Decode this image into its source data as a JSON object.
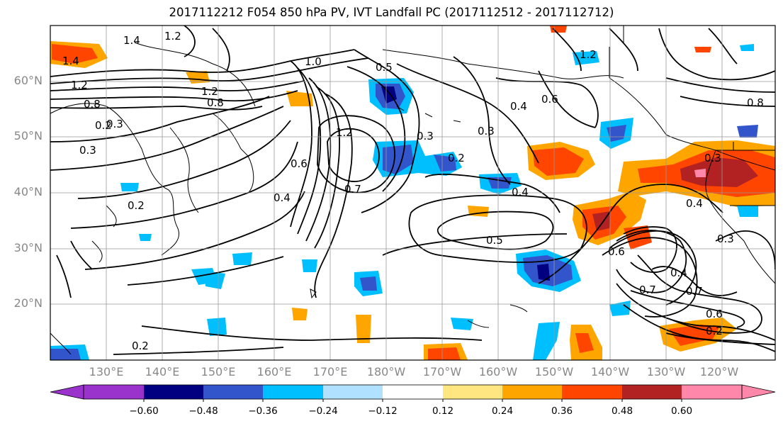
{
  "title": "2017112212 F054 850 hPa PV, IVT Landfall PC (2017112512 - 2017112712)",
  "map": {
    "lat_labels": [
      "60°N",
      "50°N",
      "40°N",
      "30°N",
      "20°N"
    ],
    "lon_labels": [
      "130°E",
      "140°E",
      "150°E",
      "160°E",
      "170°E",
      "180°W",
      "170°W",
      "160°W",
      "150°W",
      "140°W",
      "130°W",
      "120°W"
    ],
    "contour_labels": [
      "1.4",
      "1.4",
      "1.2",
      "1.2",
      "1.2",
      "0.8",
      "0.8",
      "0.3",
      "0.2",
      "0.3",
      "0.2",
      "0.2",
      "1.2",
      "0.6",
      "0.4",
      "0.7",
      "0.5",
      "0.4",
      "0.3",
      "0.2",
      "0.6",
      "0.4",
      "0.3",
      "0.4",
      "0.7",
      "0.7",
      "0.6",
      "0.2",
      "0.3",
      "0.4",
      "1.0",
      "0.5",
      "1.2",
      "0.8",
      "0.6",
      "0.3"
    ]
  },
  "colorbar": {
    "ticks": [
      "−0.60",
      "−0.48",
      "−0.36",
      "−0.24",
      "−0.12",
      "0.12",
      "0.24",
      "0.36",
      "0.48",
      "0.60"
    ],
    "colors": [
      "#9933cc",
      "#000080",
      "#3355cc",
      "#00bfff",
      "#b0e2ff",
      "#ffffff",
      "#ffe680",
      "#ffa500",
      "#ff4500",
      "#b22222",
      "#ff88aa"
    ]
  }
}
